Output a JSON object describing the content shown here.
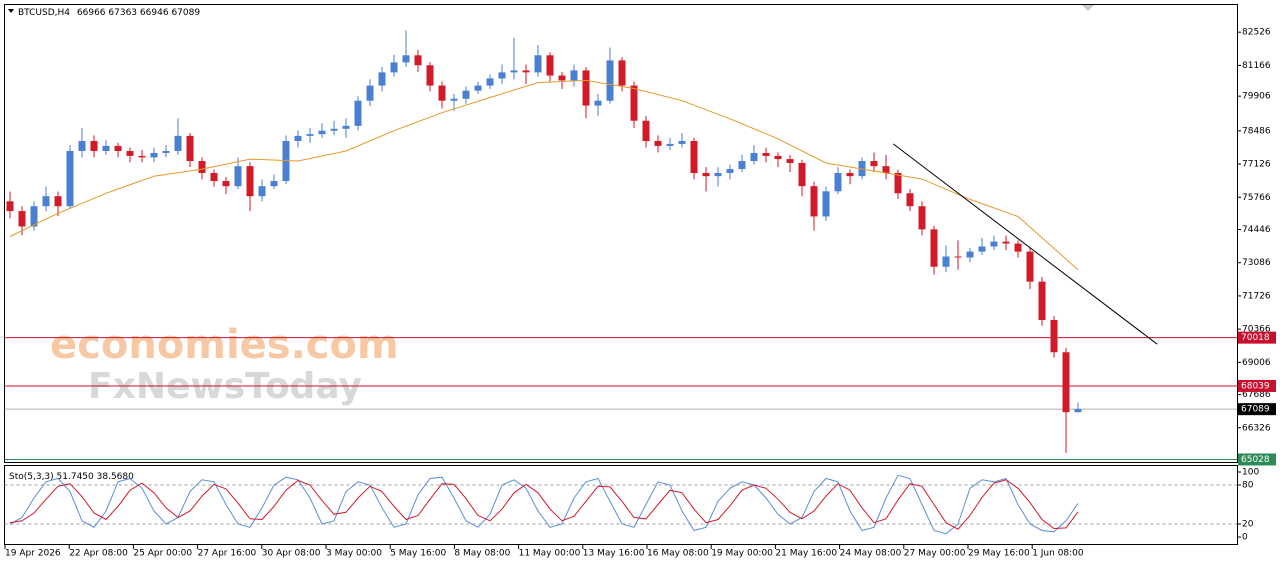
{
  "chart_data": {
    "type": "candlestick",
    "symbol": "BTCUSD,H4",
    "up_color": "#4a7fd1",
    "down_color": "#d11a2a",
    "candles": [
      [
        75600,
        76000,
        74900,
        75200
      ],
      [
        75200,
        75400,
        74200,
        74570
      ],
      [
        74570,
        75600,
        74400,
        75400
      ],
      [
        75400,
        76200,
        75200,
        75810
      ],
      [
        75810,
        76000,
        75000,
        75400
      ],
      [
        75400,
        77900,
        75300,
        77660
      ],
      [
        77660,
        78600,
        77400,
        78070
      ],
      [
        78070,
        78300,
        77400,
        77660
      ],
      [
        77660,
        78100,
        77500,
        77870
      ],
      [
        77870,
        78000,
        77400,
        77660
      ],
      [
        77660,
        77800,
        77200,
        77460
      ],
      [
        77460,
        77700,
        77200,
        77400
      ],
      [
        77400,
        77800,
        77200,
        77580
      ],
      [
        77580,
        77900,
        77400,
        77660
      ],
      [
        77660,
        79000,
        77500,
        78280
      ],
      [
        78280,
        78400,
        77000,
        77250
      ],
      [
        77250,
        77400,
        76500,
        76760
      ],
      [
        76760,
        76900,
        76200,
        76430
      ],
      [
        76430,
        76600,
        75900,
        76220
      ],
      [
        76220,
        77400,
        76100,
        77040
      ],
      [
        77040,
        77200,
        75200,
        75810
      ],
      [
        75810,
        76500,
        75600,
        76220
      ],
      [
        76220,
        76700,
        76100,
        76430
      ],
      [
        76430,
        78300,
        76300,
        78070
      ],
      [
        78070,
        78500,
        77800,
        78280
      ],
      [
        78280,
        78600,
        78000,
        78350
      ],
      [
        78350,
        78800,
        78200,
        78490
      ],
      [
        78490,
        78900,
        78300,
        78570
      ],
      [
        78570,
        79000,
        78200,
        78690
      ],
      [
        78690,
        79900,
        78500,
        79720
      ],
      [
        79720,
        80600,
        79500,
        80340
      ],
      [
        80340,
        81100,
        80100,
        80880
      ],
      [
        80880,
        81600,
        80700,
        81290
      ],
      [
        81290,
        82600,
        81100,
        81580
      ],
      [
        81580,
        81800,
        80900,
        81170
      ],
      [
        81170,
        81300,
        80100,
        80340
      ],
      [
        80340,
        80500,
        79400,
        79720
      ],
      [
        79720,
        80000,
        79300,
        79800
      ],
      [
        79800,
        80300,
        79600,
        80130
      ],
      [
        80130,
        80500,
        80000,
        80340
      ],
      [
        80340,
        80800,
        80200,
        80630
      ],
      [
        80630,
        81200,
        80400,
        80880
      ],
      [
        80880,
        82300,
        80600,
        80960
      ],
      [
        80960,
        81200,
        80400,
        80880
      ],
      [
        80880,
        82000,
        80700,
        81580
      ],
      [
        81580,
        81700,
        80500,
        80750
      ],
      [
        80750,
        80900,
        80200,
        80550
      ],
      [
        80550,
        81200,
        80300,
        80960
      ],
      [
        80960,
        81100,
        79000,
        79520
      ],
      [
        79520,
        80000,
        79100,
        79720
      ],
      [
        79720,
        81900,
        79600,
        81370
      ],
      [
        81370,
        81500,
        80100,
        80340
      ],
      [
        80340,
        80500,
        78600,
        78900
      ],
      [
        78900,
        79100,
        77800,
        78070
      ],
      [
        78070,
        78300,
        77600,
        77870
      ],
      [
        77870,
        78200,
        77700,
        77950
      ],
      [
        77950,
        78400,
        77800,
        78070
      ],
      [
        78070,
        78200,
        76500,
        76760
      ],
      [
        76760,
        77000,
        76000,
        76630
      ],
      [
        76630,
        77000,
        76200,
        76760
      ],
      [
        76760,
        77100,
        76500,
        76920
      ],
      [
        76920,
        77500,
        76800,
        77250
      ],
      [
        77250,
        77900,
        77100,
        77580
      ],
      [
        77580,
        77800,
        77200,
        77460
      ],
      [
        77460,
        77600,
        77000,
        77330
      ],
      [
        77330,
        77500,
        76800,
        77170
      ],
      [
        77170,
        77300,
        75800,
        76220
      ],
      [
        76220,
        76400,
        74400,
        74980
      ],
      [
        74980,
        76200,
        74800,
        76010
      ],
      [
        76010,
        77000,
        75900,
        76760
      ],
      [
        76760,
        76900,
        76300,
        76630
      ],
      [
        76630,
        77400,
        76500,
        77250
      ],
      [
        77250,
        77600,
        76800,
        77040
      ],
      [
        77040,
        77500,
        76500,
        76760
      ],
      [
        76760,
        76900,
        75700,
        75930
      ],
      [
        75930,
        76100,
        75200,
        75400
      ],
      [
        75400,
        75600,
        74200,
        74450
      ],
      [
        74450,
        74600,
        72600,
        72920
      ],
      [
        72920,
        73800,
        72700,
        73340
      ],
      [
        73340,
        74000,
        72800,
        73300
      ],
      [
        73300,
        73700,
        73100,
        73540
      ],
      [
        73540,
        74100,
        73400,
        73750
      ],
      [
        73750,
        74200,
        73600,
        73950
      ],
      [
        73950,
        74200,
        73600,
        73870
      ],
      [
        73870,
        74000,
        73300,
        73540
      ],
      [
        73540,
        73700,
        72000,
        72310
      ],
      [
        72310,
        72500,
        70500,
        70740
      ],
      [
        70740,
        70900,
        69200,
        69420
      ],
      [
        69420,
        69600,
        65300,
        66966
      ],
      [
        66966,
        67363,
        66946,
        67089
      ]
    ],
    "ma": {
      "color": "#e39a2d",
      "x": [
        0,
        4,
        8,
        12,
        16,
        20,
        24,
        28,
        32,
        36,
        40,
        44,
        48,
        52,
        56,
        60,
        64,
        68,
        72,
        76,
        80,
        84,
        89
      ],
      "values": [
        74160,
        75110,
        75930,
        76630,
        76920,
        77330,
        77250,
        77660,
        78490,
        79230,
        79850,
        80460,
        80550,
        80220,
        79720,
        78980,
        78160,
        77170,
        76840,
        76510,
        75680,
        74980,
        72800
      ]
    },
    "trendline": {
      "color": "#000000",
      "x": [
        73.6,
        95.6
      ],
      "values": [
        77950,
        69750
      ]
    },
    "levels": [
      {
        "value": 70018,
        "color": "#c8102e"
      },
      {
        "value": 68039,
        "color": "#c8102e"
      },
      {
        "value": 65028,
        "color": "#2e8b57"
      }
    ],
    "current_color": "#000000",
    "ylim": [
      64925,
      83680
    ],
    "yticks": [
      82526,
      81166,
      79906,
      78486,
      77126,
      75766,
      74446,
      73086,
      71726,
      70366,
      69006,
      67686,
      66326
    ],
    "x_labels": [
      "19 Apr 2026",
      "22 Apr 08:00",
      "25 Apr 00:00",
      "27 Apr 16:00",
      "30 Apr 08:00",
      "3 May 00:00",
      "5 May 16:00",
      "8 May 08:00",
      "11 May 00:00",
      "13 May 16:00",
      "16 May 08:00",
      "19 May 00:00",
      "21 May 16:00",
      "24 May 08:00",
      "27 May 00:00",
      "29 May 16:00",
      "1 Jun 08:00"
    ],
    "stochastic": {
      "label": "Sto(5,3,3)",
      "value_labels": [
        "51.7450",
        "38.5680"
      ],
      "k_color": "#5b8fd6",
      "d_color": "#d11a2a",
      "ylim": [
        0,
        100
      ],
      "yticks": [
        100,
        80,
        20,
        0
      ],
      "k_values": [
        20,
        30,
        60,
        85,
        90,
        70,
        25,
        15,
        40,
        85,
        90,
        75,
        40,
        20,
        30,
        70,
        88,
        85,
        50,
        20,
        15,
        45,
        80,
        92,
        88,
        60,
        20,
        25,
        70,
        85,
        80,
        45,
        15,
        20,
        65,
        90,
        92,
        60,
        25,
        15,
        35,
        80,
        88,
        75,
        40,
        15,
        20,
        60,
        85,
        90,
        55,
        20,
        15,
        50,
        85,
        80,
        40,
        10,
        15,
        55,
        75,
        85,
        80,
        60,
        35,
        20,
        30,
        70,
        90,
        85,
        40,
        10,
        15,
        60,
        95,
        90,
        50,
        10,
        5,
        20,
        75,
        88,
        85,
        90,
        50,
        20,
        10,
        8,
        25,
        51.745
      ],
      "d_values": [
        22,
        25,
        37,
        58,
        78,
        82,
        62,
        37,
        27,
        47,
        72,
        83,
        68,
        45,
        30,
        40,
        63,
        81,
        74,
        52,
        28,
        27,
        47,
        72,
        87,
        80,
        56,
        35,
        38,
        60,
        78,
        70,
        47,
        27,
        33,
        58,
        82,
        81,
        59,
        33,
        25,
        43,
        68,
        81,
        68,
        43,
        25,
        32,
        55,
        78,
        77,
        55,
        30,
        28,
        50,
        72,
        68,
        43,
        22,
        27,
        48,
        72,
        80,
        75,
        58,
        38,
        28,
        40,
        63,
        82,
        72,
        45,
        22,
        28,
        57,
        82,
        78,
        50,
        22,
        12,
        33,
        61,
        83,
        88,
        75,
        53,
        27,
        13,
        14,
        38.568
      ]
    },
    "watermark": [
      "economies.com",
      "FxNewsToday"
    ]
  }
}
